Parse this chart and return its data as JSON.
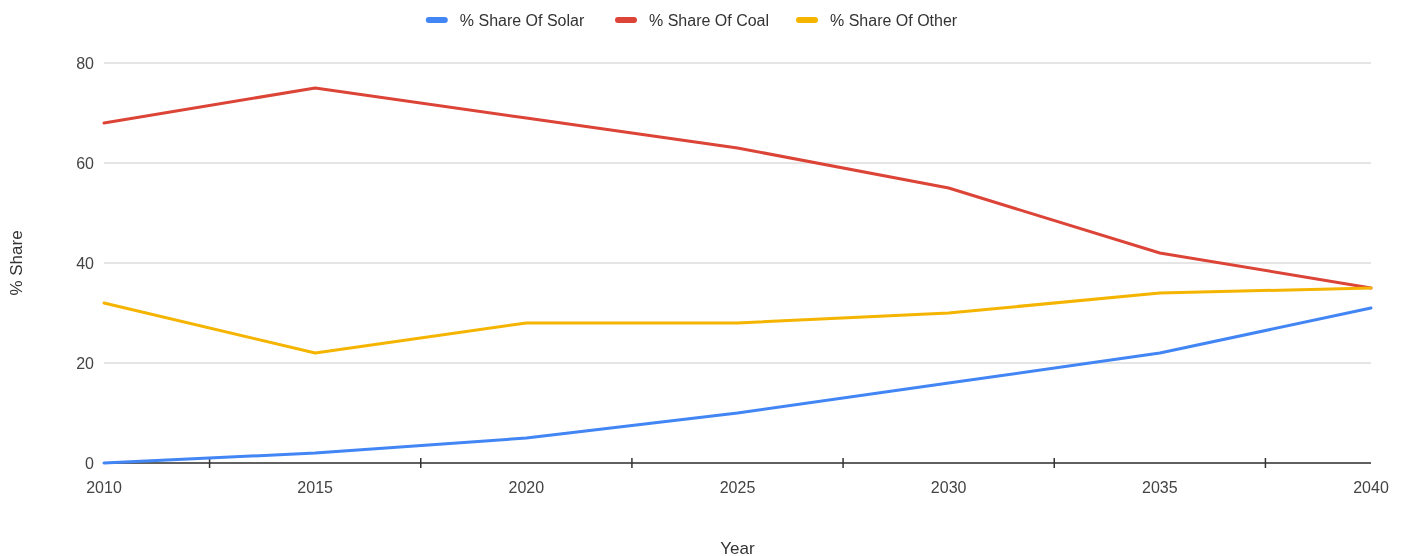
{
  "chart_data": {
    "type": "line",
    "xlabel": "Year",
    "ylabel": "% Share",
    "x": [
      2010,
      2015,
      2020,
      2025,
      2030,
      2035,
      2040
    ],
    "series": [
      {
        "name": "% Share Of Solar",
        "color": "#4285f4",
        "values": [
          0,
          2,
          5,
          10,
          16,
          22,
          31
        ]
      },
      {
        "name": "% Share Of Coal",
        "color": "#db4437",
        "values": [
          68,
          75,
          69,
          63,
          55,
          42,
          35
        ]
      },
      {
        "name": "% Share Of Other",
        "color": "#f4b400",
        "values": [
          32,
          22,
          28,
          28,
          30,
          34,
          35
        ]
      }
    ],
    "xlim": [
      2010,
      2040
    ],
    "xticks": [
      2010,
      {
        "value": 2012.5,
        "label": null
      },
      2015,
      {
        "value": 2017.5,
        "label": null
      },
      2020,
      {
        "value": 2022.5,
        "label": null
      },
      2025,
      {
        "value": 2027.5,
        "label": null
      },
      2030,
      {
        "value": 2032.5,
        "label": null
      },
      2035,
      {
        "value": 2037.5,
        "label": null
      },
      2040
    ],
    "ylim": [
      0,
      80
    ],
    "yticks": [
      0,
      20,
      40,
      60,
      80
    ],
    "grid": "y",
    "legend": "top",
    "marker": "none",
    "line_style": "solid"
  }
}
